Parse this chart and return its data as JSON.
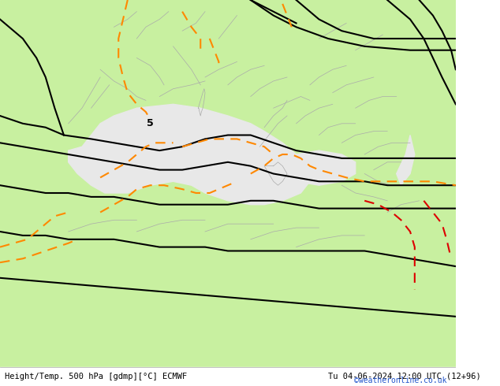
{
  "title_left": "Height/Temp. 500 hPa [gdmp][°C] ECMWF",
  "title_right": "Tu 04-06-2024 12:00 UTC (12+96)",
  "watermark": "©weatheronline.co.uk",
  "bg_color_land": "#c8f0a0",
  "bg_color_sea": "#e8e8e8",
  "border_color": "#aaaaaa",
  "black_contour_color": "#000000",
  "orange_contour_color": "#ff8800",
  "red_contour_color": "#dd0000",
  "label_5": "5",
  "figsize": [
    6.34,
    4.9
  ],
  "dpi": 100
}
